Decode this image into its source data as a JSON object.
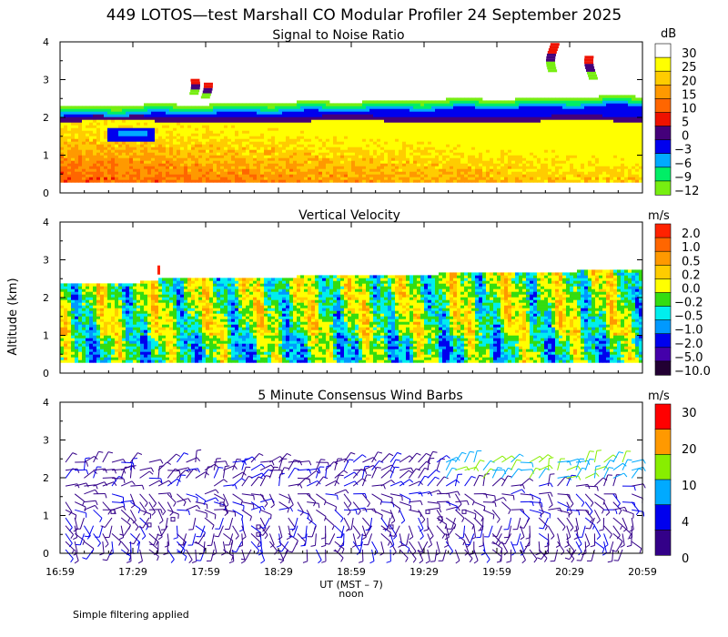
{
  "title": "449 LOTOS—test Marshall CO Modular Profiler 24 September 2025",
  "ylabel": "Altitude (km)",
  "xlabel": "UT  (MST – 7)",
  "xsub": "noon",
  "footnote": "Simple filtering applied",
  "x_ticks": [
    "16:59",
    "17:29",
    "17:59",
    "18:29",
    "18:59",
    "19:29",
    "19:59",
    "20:29",
    "20:59"
  ],
  "chart_data": [
    {
      "type": "heatmap",
      "title": "Signal to Noise Ratio",
      "units": "dB",
      "ylim": [
        0,
        4
      ],
      "y_ticks": [
        "0",
        "1",
        "2",
        "3",
        "4"
      ],
      "colorbar": {
        "labels": [
          "30",
          "25",
          "20",
          "15",
          "10",
          "5",
          "0",
          "−3",
          "−6",
          "−9",
          "−12"
        ],
        "colors": [
          "#ffffff",
          "#ffff00",
          "#ffcc00",
          "#ff9900",
          "#ff6600",
          "#ee1100",
          "#44007a",
          "#0000ee",
          "#00aaff",
          "#00ee66",
          "#77ee11"
        ]
      }
    },
    {
      "type": "heatmap",
      "title": "Vertical Velocity",
      "units": "m/s",
      "ylim": [
        0,
        4
      ],
      "y_ticks": [
        "0",
        "1",
        "2",
        "3",
        "4"
      ],
      "colorbar": {
        "labels": [
          "2.0",
          "1.0",
          "0.5",
          "0.2",
          "0.0",
          "−0.2",
          "−0.5",
          "−1.0",
          "−2.0",
          "−5.0",
          "−10.0"
        ],
        "colors": [
          "#ff2200",
          "#ff6600",
          "#ff9900",
          "#ffcc00",
          "#ffff00",
          "#33dd11",
          "#00eeee",
          "#0099ff",
          "#0000ee",
          "#4400aa",
          "#220033"
        ]
      }
    },
    {
      "type": "scatter",
      "title": "5 Minute Consensus Wind Barbs",
      "units": "m/s",
      "ylim": [
        0,
        4
      ],
      "y_ticks": [
        "0",
        "1",
        "2",
        "3",
        "4"
      ],
      "colorbar": {
        "labels": [
          "30",
          "20",
          "10",
          "4",
          "0"
        ],
        "colors": [
          "#ff0000",
          "#ff9900",
          "#88ee00",
          "#00aaff",
          "#0000ee",
          "#330088"
        ]
      }
    }
  ]
}
